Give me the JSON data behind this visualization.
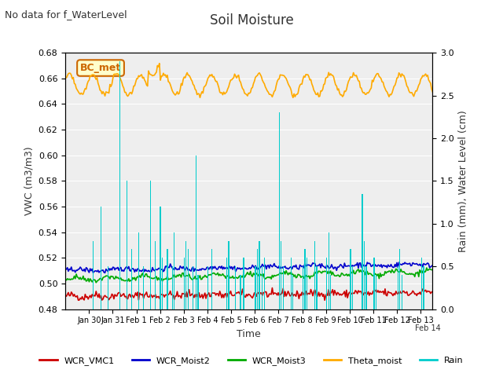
{
  "title": "Soil Moisture",
  "subtitle": "No data for f_WaterLevel",
  "xlabel": "Time",
  "ylabel_left": "VWC (m3/m3)",
  "ylabel_right": "Rain (mm), Water Level (cm)",
  "ylim_left": [
    0.48,
    0.68
  ],
  "ylim_right": [
    0.0,
    3.0
  ],
  "yticks_left": [
    0.48,
    0.5,
    0.52,
    0.54,
    0.56,
    0.58,
    0.6,
    0.62,
    0.64,
    0.66,
    0.68
  ],
  "yticks_right": [
    0.0,
    0.5,
    1.0,
    1.5,
    2.0,
    2.5,
    3.0
  ],
  "xtick_positions": [
    1,
    2,
    3,
    4,
    5,
    6,
    7,
    8,
    9,
    10,
    11,
    12,
    13,
    14,
    15
  ],
  "xticklabels": [
    "Jan 30",
    "Jan 31",
    "Feb 1",
    "Feb 2",
    "Feb 3",
    "Feb 4",
    "Feb 5",
    "Feb 6",
    "Feb 7",
    "Feb 8",
    "Feb 9",
    "Feb 10",
    "Feb 11",
    "Feb 12",
    "Feb 13"
  ],
  "xlim": [
    0,
    15.5
  ],
  "bc_met_label": "BC_met",
  "legend_entries": [
    "WCR_VMC1",
    "WCR_Moist2",
    "WCR_Moist3",
    "Theta_moist",
    "Rain"
  ],
  "legend_colors": [
    "#cc0000",
    "#0000cc",
    "#00aa00",
    "#ffaa00",
    "#00cccc"
  ],
  "colors": {
    "WCR_VMC1": "#cc0000",
    "WCR_Moist2": "#0000cc",
    "WCR_Moist3": "#00aa00",
    "Theta_moist": "#ffaa00",
    "Rain": "#00cccc"
  },
  "background_plot": "#eeeeee",
  "background_fig": "#ffffff",
  "grid_color": "#ffffff",
  "n_days": 15.5
}
